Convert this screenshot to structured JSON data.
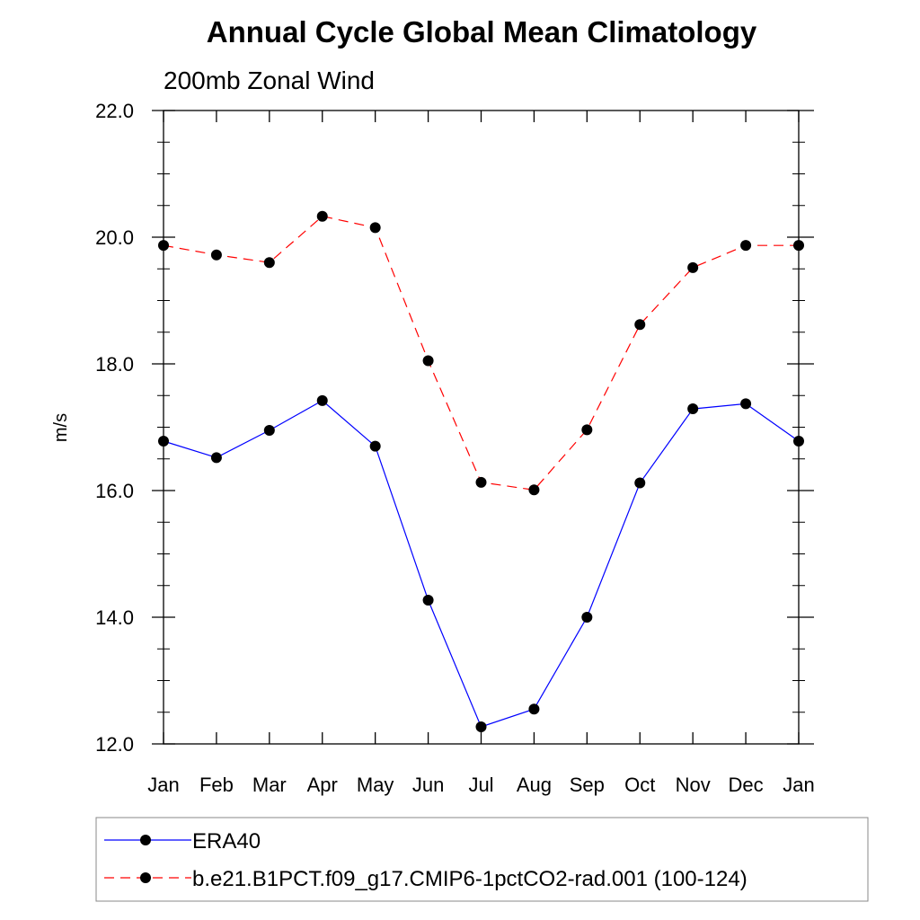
{
  "chart_data": {
    "type": "line",
    "title": "Annual Cycle Global Mean Climatology",
    "subtitle": "200mb Zonal Wind",
    "xlabel": "",
    "ylabel": "m/s",
    "categories": [
      "Jan",
      "Feb",
      "Mar",
      "Apr",
      "May",
      "Jun",
      "Jul",
      "Aug",
      "Sep",
      "Oct",
      "Nov",
      "Dec",
      "Jan"
    ],
    "ylim": [
      12.0,
      22.0
    ],
    "yticks": [
      "12.0",
      "14.0",
      "16.0",
      "18.0",
      "20.0",
      "22.0"
    ],
    "grid": false,
    "legend_position": "bottom",
    "series": [
      {
        "name": "ERA40",
        "color": "#0000ff",
        "dash": "solid",
        "marker": "filled-circle",
        "values": [
          16.78,
          16.52,
          16.95,
          17.42,
          16.7,
          14.27,
          12.27,
          12.55,
          14.0,
          16.12,
          17.29,
          17.37,
          16.78
        ]
      },
      {
        "name": "b.e21.B1PCT.f09_g17.CMIP6-1pctCO2-rad.001 (100-124)",
        "color": "#ff0000",
        "dash": "dashed",
        "marker": "filled-circle",
        "values": [
          19.87,
          19.72,
          19.6,
          20.33,
          20.15,
          18.05,
          16.13,
          16.01,
          16.96,
          18.62,
          19.52,
          19.87,
          19.87
        ]
      }
    ]
  }
}
